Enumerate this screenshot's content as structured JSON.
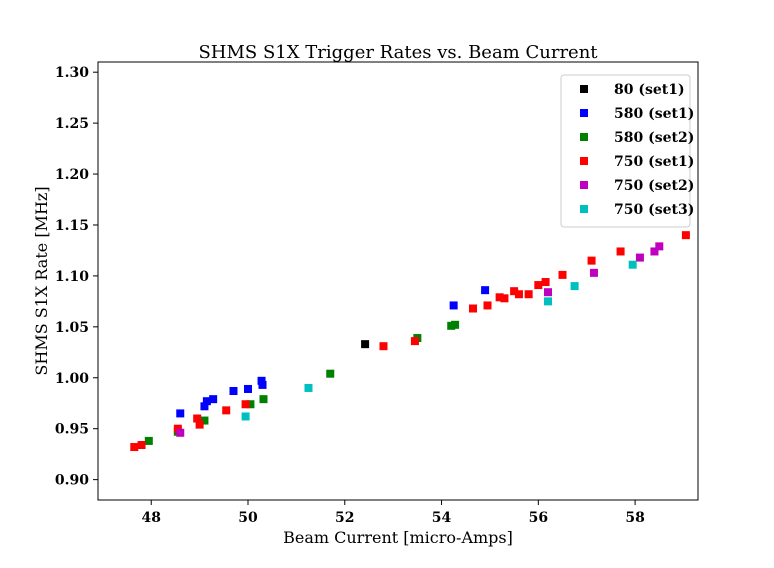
{
  "chart_data": {
    "type": "scatter",
    "title": "SHMS S1X Trigger Rates vs. Beam Current",
    "xlabel": "Beam Current [micro-Amps]",
    "ylabel": "SHMS S1X Rate [MHz]",
    "xlim": [
      46.9,
      59.3
    ],
    "ylim": [
      0.88,
      1.31
    ],
    "xticks": [
      "48",
      "50",
      "52",
      "54",
      "56",
      "58"
    ],
    "yticks": [
      "0.90",
      "0.95",
      "1.00",
      "1.05",
      "1.10",
      "1.15",
      "1.20",
      "1.25",
      "1.30"
    ],
    "grid": false,
    "legend_position": "top-right",
    "series": [
      {
        "name": "80 (set1)",
        "color": "#000000",
        "x": [
          52.42
        ],
        "y": [
          1.033
        ]
      },
      {
        "name": "580 (set1)",
        "color": "#0000ff",
        "x": [
          48.6,
          49.1,
          49.15,
          49.28,
          49.7,
          50.0,
          50.28,
          50.3,
          54.25,
          54.9
        ],
        "y": [
          0.965,
          0.972,
          0.977,
          0.979,
          0.987,
          0.989,
          0.997,
          0.993,
          1.071,
          1.086
        ]
      },
      {
        "name": "580 (set2)",
        "color": "#008000",
        "x": [
          47.95,
          48.55,
          49.1,
          50.05,
          50.32,
          51.7,
          53.5,
          54.2,
          54.28
        ],
        "y": [
          0.938,
          0.947,
          0.958,
          0.974,
          0.979,
          1.004,
          1.039,
          1.051,
          1.052
        ]
      },
      {
        "name": "750 (set1)",
        "color": "#ff0000",
        "x": [
          47.65,
          47.8,
          48.55,
          48.95,
          49.0,
          49.55,
          49.95,
          52.8,
          53.45,
          54.65,
          54.95,
          55.2,
          55.3,
          55.5,
          55.6,
          55.8,
          56.0,
          56.15,
          56.5,
          57.1,
          57.7,
          59.05
        ],
        "y": [
          0.932,
          0.934,
          0.95,
          0.96,
          0.954,
          0.968,
          0.974,
          1.031,
          1.036,
          1.068,
          1.071,
          1.079,
          1.078,
          1.085,
          1.082,
          1.082,
          1.091,
          1.094,
          1.101,
          1.115,
          1.124,
          1.14
        ]
      },
      {
        "name": "750 (set2)",
        "color": "#bf00bf",
        "x": [
          48.6,
          56.2,
          57.15,
          58.1,
          58.4,
          58.5
        ],
        "y": [
          0.946,
          1.084,
          1.103,
          1.118,
          1.124,
          1.129
        ]
      },
      {
        "name": "750 (set3)",
        "color": "#00bfbf",
        "x": [
          49.95,
          51.25,
          56.2,
          56.75,
          57.95
        ],
        "y": [
          0.962,
          0.99,
          1.075,
          1.09,
          1.111
        ]
      }
    ]
  }
}
